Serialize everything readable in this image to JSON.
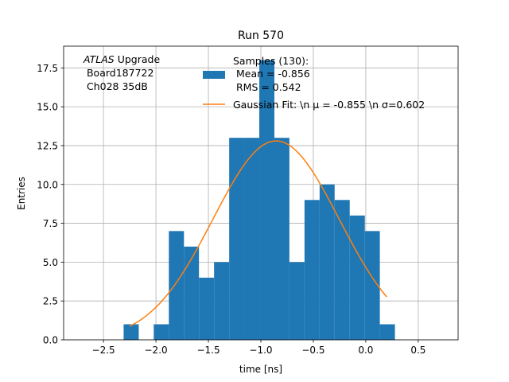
{
  "chart_data": {
    "type": "bar",
    "title": "Run 570",
    "xlabel": "time [ns]",
    "ylabel": "Entries",
    "xlim": [
      -2.88,
      0.88
    ],
    "ylim": [
      0,
      18.9
    ],
    "grid": true,
    "xticks": [
      -2.5,
      -2.0,
      -1.5,
      -1.0,
      -0.5,
      0.0,
      0.5
    ],
    "xtick_labels": [
      "−2.5",
      "−2.0",
      "−1.5",
      "−1.0",
      "−0.5",
      "0.0",
      "0.5"
    ],
    "yticks": [
      0.0,
      2.5,
      5.0,
      7.5,
      10.0,
      12.5,
      15.0,
      17.5
    ],
    "ytick_labels": [
      "0.0",
      "2.5",
      "5.0",
      "7.5",
      "10.0",
      "12.5",
      "15.0",
      "17.5"
    ],
    "histogram": {
      "bin_edges": [
        -2.308,
        -2.164,
        -2.021,
        -1.877,
        -1.733,
        -1.59,
        -1.446,
        -1.302,
        -1.159,
        -1.015,
        -0.871,
        -0.728,
        -0.584,
        -0.44,
        -0.297,
        -0.153,
        -0.009,
        0.134,
        0.278
      ],
      "counts": [
        1,
        0,
        1,
        7,
        6,
        4,
        5,
        13,
        13,
        18,
        13,
        5,
        9,
        10,
        9,
        8,
        7,
        1
      ],
      "color": "#1f77b4"
    },
    "fit": {
      "name": "Gaussian",
      "amplitude": 12.8,
      "mu": -0.855,
      "sigma": 0.602,
      "x_range": [
        -2.25,
        0.2
      ],
      "color": "#ff7f0e"
    },
    "legend": {
      "location": "top-right",
      "entries": [
        {
          "series": "histogram",
          "lines": [
            "Samples (130):",
            " Mean = -0.856",
            " RMS = 0.542"
          ]
        },
        {
          "series": "fit",
          "lines": [
            "Gaussian Fit: \\n μ = -0.855 \\n σ=0.602"
          ]
        }
      ]
    },
    "annotation": {
      "italic": "ATLAS",
      "text": " Upgrade",
      "lines": [
        " Board187722",
        " Ch028 35dB"
      ]
    }
  }
}
